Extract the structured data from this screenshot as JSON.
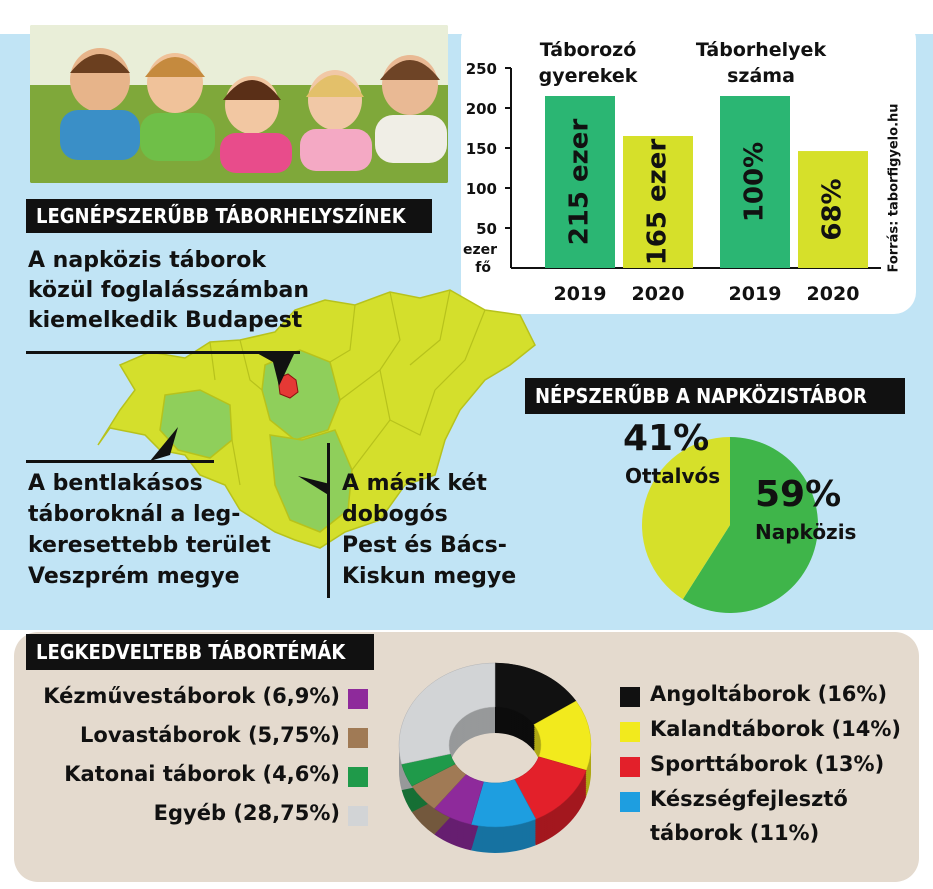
{
  "headings": {
    "locations": "LEGNÉPSZERŰBB TÁBORHELYSZÍNEK",
    "napkozi": "NÉPSZERŰBB A NAPKÖZISTÁBOR",
    "themes": "LEGKEDVELTEBB TÁBORTÉMÁK"
  },
  "map_notes": {
    "budapest": [
      "A napközis táborok",
      "közül foglalásszámban",
      "kiemelkedik Budapest"
    ],
    "veszprem": [
      "A bentlakásos",
      "táboroknál a leg-",
      "keresettebb terület",
      "Veszprém megye"
    ],
    "pest_bacs": [
      "A másik két",
      "dobogós",
      "Pest és Bács-",
      "Kiskun megye"
    ]
  },
  "source": "Forrás: taborfigyelo.hu",
  "colors": {
    "green": "#2bb673",
    "lime": "#d6e02a",
    "map_yellow": "#d4df2c",
    "map_green": "#8fcf5b",
    "budapest_red": "#e53935",
    "bg_blue": "#c1e4f5",
    "bg_beige": "#e4dace"
  },
  "chart_data": [
    {
      "type": "bar",
      "title": "Táborozó gyerekek",
      "categories": [
        "2019",
        "2020"
      ],
      "values": [
        215,
        165
      ],
      "labels": [
        "215 ezer",
        "165 ezer"
      ],
      "unit": "ezer fő",
      "ylim": [
        0,
        250
      ],
      "yticks": [
        "250",
        "200",
        "150",
        "100",
        "50"
      ]
    },
    {
      "type": "bar",
      "title": "Táborhelyek száma",
      "categories": [
        "2019",
        "2020"
      ],
      "values": [
        100,
        68
      ],
      "labels": [
        "100%",
        "68%"
      ]
    },
    {
      "type": "pie",
      "title": "NÉPSZERŰBB A NAPKÖZISTÁBOR",
      "slices": [
        {
          "name": "Napközis",
          "value": 59,
          "label": "59%",
          "color": "#3fb54a"
        },
        {
          "name": "Ottalvós",
          "value": 41,
          "label": "41%",
          "color": "#d6e02a"
        }
      ]
    },
    {
      "type": "pie",
      "title": "LEGKEDVELTEBB TÁBORTÉMÁK",
      "slices": [
        {
          "name": "Angoltáborok (16%)",
          "value": 16,
          "color": "#111111"
        },
        {
          "name": "Kalandtáborok (14%)",
          "value": 14,
          "color": "#f2ea1d"
        },
        {
          "name": "Sporttáborok (13%)",
          "value": 13,
          "color": "#e3202a"
        },
        {
          "name": "Készségfejlesztő táborok (11%)",
          "value": 11,
          "color": "#1e9ee0"
        },
        {
          "name": "Kézművestáborok (6,9%)",
          "value": 6.9,
          "color": "#8e2a9b"
        },
        {
          "name": "Lovastáborok (5,75%)",
          "value": 5.75,
          "color": "#a07a55"
        },
        {
          "name": "Katonai táborok (4,6%)",
          "value": 4.6,
          "color": "#1f9a4a"
        },
        {
          "name": "Egyéb (28,75%)",
          "value": 28.75,
          "color": "#d2d4d6"
        }
      ]
    }
  ],
  "legend_left": [
    {
      "label": "Kézművestáborok (6,9%)",
      "color": "#8e2a9b"
    },
    {
      "label": "Lovastáborok (5,75%)",
      "color": "#a07a55"
    },
    {
      "label": "Katonai táborok (4,6%)",
      "color": "#1f9a4a"
    },
    {
      "label": "Egyéb (28,75%)",
      "color": "#d2d4d6"
    }
  ],
  "legend_right": [
    {
      "label": "Angoltáborok (16%)",
      "color": "#111111"
    },
    {
      "label": "Kalandtáborok (14%)",
      "color": "#f2ea1d"
    },
    {
      "label": "Sporttáborok (13%)",
      "color": "#e3202a"
    },
    {
      "label": "Készségfejlesztő",
      "label2": "táborok (11%)",
      "color": "#1e9ee0"
    }
  ]
}
